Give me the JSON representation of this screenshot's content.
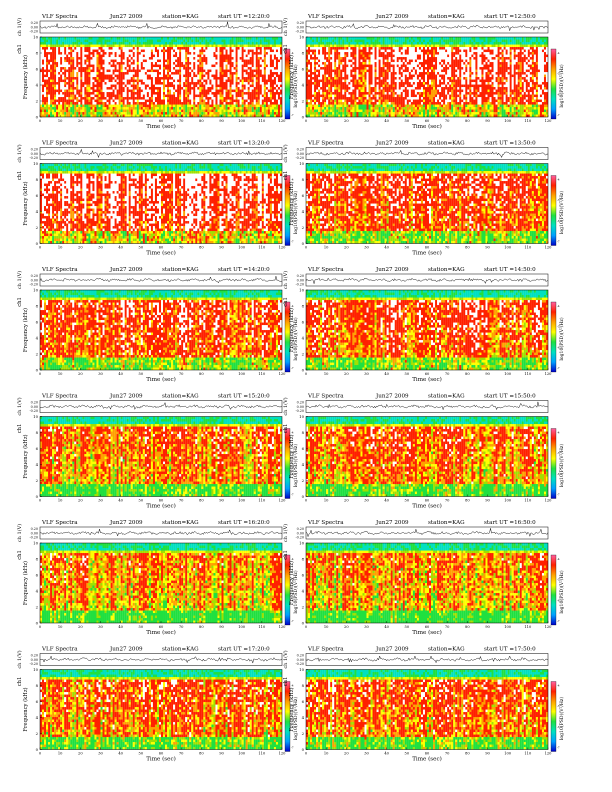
{
  "figure": {
    "type": "spectrogram_grid",
    "colormap": [
      "#0000c8",
      "#00a0ff",
      "#00e0c0",
      "#20e040",
      "#a0e000",
      "#ffff00",
      "#ffa000",
      "#ff2000",
      "#ffffff"
    ],
    "common": {
      "instrument": "VLF Spectra",
      "date": "Jun27 2009",
      "station": "station=KAG",
      "waveform_ylabel": "ch 1(V)",
      "waveform_ticks": [
        "0.20",
        "0.00",
        "-0.20"
      ],
      "spec_ylabel_top": "ch1",
      "spec_ylabel": "Frequency (kHz)",
      "y_ticks": [
        "0",
        "2",
        "4",
        "6",
        "8",
        "10"
      ],
      "x_ticks": [
        "0",
        "10",
        "20",
        "30",
        "40",
        "50",
        "60",
        "70",
        "80",
        "90",
        "100",
        "110",
        "120"
      ],
      "xlabel": "Time (sec)",
      "colorbar_label": "log10(PSD)(V²/Hz)",
      "colorbar_ticks": [
        "-4",
        "-5",
        "-6",
        "-7"
      ]
    }
  },
  "chart_data": [
    {
      "type": "heatmap",
      "title": "VLF Spectra  Jun27 2009  station=KAG  start UT =12:20:0",
      "start_ut": "start UT =12:20:0",
      "xlim": [
        0,
        120
      ],
      "ylim": [
        0,
        10
      ],
      "xlabel": "Time (sec)",
      "ylabel": "Frequency (kHz)",
      "level": 0.78
    },
    {
      "type": "heatmap",
      "title": "VLF Spectra  Jun27 2009  station=KAG  start UT =12:50:0",
      "start_ut": "start UT =12:50:0",
      "xlim": [
        0,
        120
      ],
      "ylim": [
        0,
        10
      ],
      "xlabel": "Time (sec)",
      "ylabel": "Frequency (kHz)",
      "level": 0.78
    },
    {
      "type": "heatmap",
      "title": "VLF Spectra  Jun27 2009  station=KAG  start UT =13:20:0",
      "start_ut": "start UT =13:20:0",
      "xlim": [
        0,
        120
      ],
      "ylim": [
        0,
        10
      ],
      "xlabel": "Time (sec)",
      "ylabel": "Frequency (kHz)",
      "level": 0.8
    },
    {
      "type": "heatmap",
      "title": "VLF Spectra  Jun27 2009  station=KAG  start UT =13:50:0",
      "start_ut": "start UT =13:50:0",
      "xlim": [
        0,
        120
      ],
      "ylim": [
        0,
        10
      ],
      "xlabel": "Time (sec)",
      "ylabel": "Frequency (kHz)",
      "level": 0.68
    },
    {
      "type": "heatmap",
      "title": "VLF Spectra  Jun27 2009  station=KAG  start UT =14:20:0",
      "start_ut": "start UT =14:20:0",
      "xlim": [
        0,
        120
      ],
      "ylim": [
        0,
        10
      ],
      "xlabel": "Time (sec)",
      "ylabel": "Frequency (kHz)",
      "level": 0.7
    },
    {
      "type": "heatmap",
      "title": "VLF Spectra  Jun27 2009  station=KAG  start UT =14:50:0",
      "start_ut": "start UT =14:50:0",
      "xlim": [
        0,
        120
      ],
      "ylim": [
        0,
        10
      ],
      "xlabel": "Time (sec)",
      "ylabel": "Frequency (kHz)",
      "level": 0.66
    },
    {
      "type": "heatmap",
      "title": "VLF Spectra  Jun27 2009  station=KAG  start UT =15:20:0",
      "start_ut": "start UT =15:20:0",
      "xlim": [
        0,
        120
      ],
      "ylim": [
        0,
        10
      ],
      "xlabel": "Time (sec)",
      "ylabel": "Frequency (kHz)",
      "level": 0.58
    },
    {
      "type": "heatmap",
      "title": "VLF Spectra  Jun27 2009  station=KAG  start UT =15:50:0",
      "start_ut": "start UT =15:50:0",
      "xlim": [
        0,
        120
      ],
      "ylim": [
        0,
        10
      ],
      "xlabel": "Time (sec)",
      "ylabel": "Frequency (kHz)",
      "level": 0.6
    },
    {
      "type": "heatmap",
      "title": "VLF Spectra  Jun27 2009  station=KAG  start UT =16:20:0",
      "start_ut": "start UT =16:20:0",
      "xlim": [
        0,
        120
      ],
      "ylim": [
        0,
        10
      ],
      "xlabel": "Time (sec)",
      "ylabel": "Frequency (kHz)",
      "level": 0.55
    },
    {
      "type": "heatmap",
      "title": "VLF Spectra  Jun27 2009  station=KAG  start UT =16:50:0",
      "start_ut": "start UT =16:50:0",
      "xlim": [
        0,
        120
      ],
      "ylim": [
        0,
        10
      ],
      "xlabel": "Time (sec)",
      "ylabel": "Frequency (kHz)",
      "level": 0.55
    },
    {
      "type": "heatmap",
      "title": "VLF Spectra  Jun27 2009  station=KAG  start UT =17:20:0",
      "start_ut": "start UT =17:20:0",
      "xlim": [
        0,
        120
      ],
      "ylim": [
        0,
        10
      ],
      "xlabel": "Time (sec)",
      "ylabel": "Frequency (kHz)",
      "level": 0.62
    },
    {
      "type": "heatmap",
      "title": "VLF Spectra  Jun27 2009  station=KAG  start UT =17:50:0",
      "start_ut": "start UT =17:50:0",
      "xlim": [
        0,
        120
      ],
      "ylim": [
        0,
        10
      ],
      "xlabel": "Time (sec)",
      "ylabel": "Frequency (kHz)",
      "level": 0.64
    }
  ]
}
